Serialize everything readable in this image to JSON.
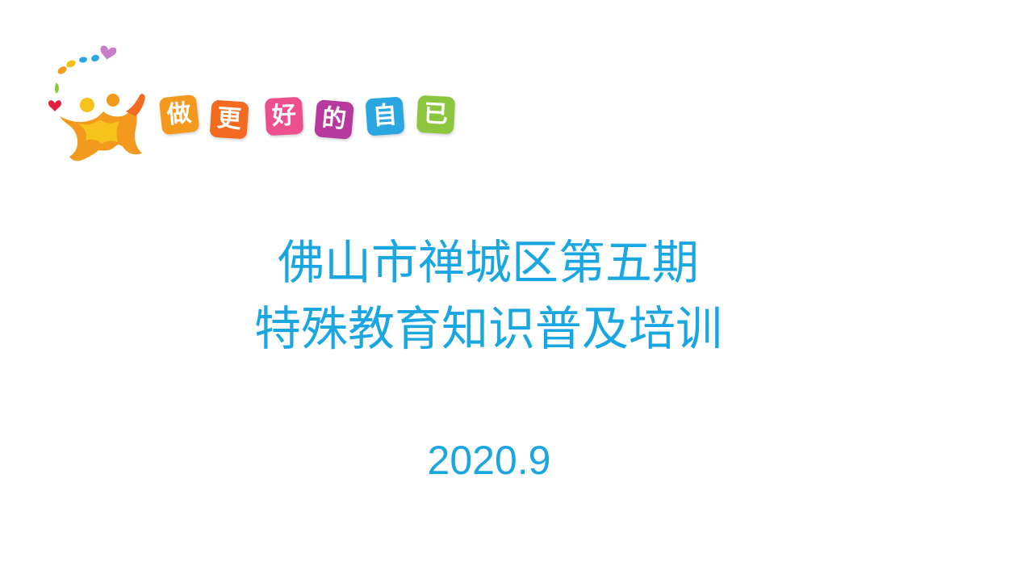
{
  "logo": {
    "slogan_chars": [
      "做",
      "更",
      "好",
      "的",
      "自",
      "已"
    ],
    "tile_colors": [
      "#f39a1e",
      "#f26b21",
      "#ec4f8e",
      "#b8399d",
      "#2aa6e1",
      "#8cc63f"
    ],
    "mark_icon": "people-logo-icon"
  },
  "title": {
    "line1": "佛山市禅城区第五期",
    "line2": "特殊教育知识普及培训"
  },
  "date": "2020.9",
  "colors": {
    "title": "#1aa6e0",
    "background": "#ffffff"
  }
}
